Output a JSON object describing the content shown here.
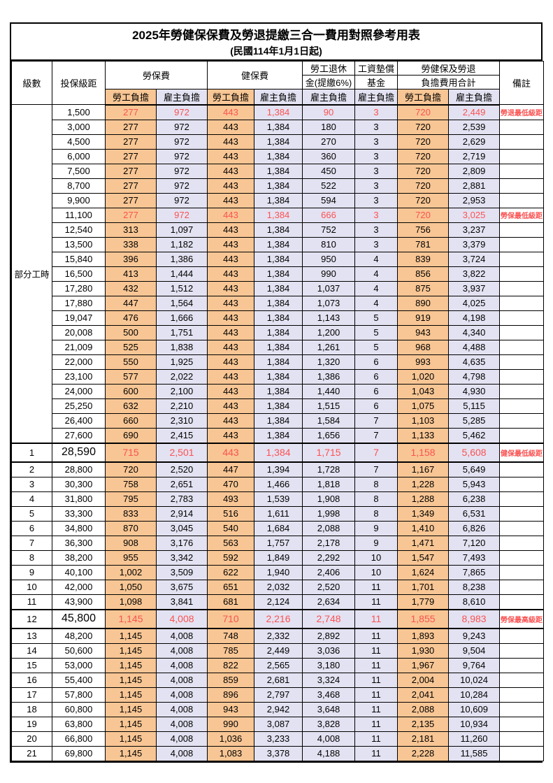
{
  "title": "2025年勞健保保費及勞退提繳三合一費用對照參考用表",
  "subtitle": "(民國114年1月1日起)",
  "columns": {
    "level": "級數",
    "bracket": "投保級距",
    "labor": "勞保費",
    "health": "健保費",
    "pension_line1": "勞工退休",
    "pension_line2": "金(提繳6%)",
    "wage_fund_line1": "工資墊償",
    "wage_fund_line2": "基金",
    "total_line1": "勞健保及勞退",
    "total_line2": "負擔費用合計",
    "remark": "備註",
    "employee": "勞工負擔",
    "employer": "雇主負擔"
  },
  "group_label": "部分工時",
  "part_time_row_count": 23,
  "colors": {
    "employee_fill": "#F8C694",
    "employer_fill": "#E3E2F2",
    "highlight_text": "#FB5252",
    "border": "#000000"
  },
  "row_fields": [
    "level",
    "salary",
    "labor_emp",
    "labor_er",
    "health_emp",
    "health_er",
    "pension_er",
    "wage_fund_er",
    "total_emp",
    "total_er",
    "note",
    "style"
  ],
  "rows": [
    [
      "",
      "1,500",
      "277",
      "972",
      "443",
      "1,384",
      "90",
      "3",
      "720",
      "2,449",
      "勞退最低級距",
      "red"
    ],
    [
      "",
      "3,000",
      "277",
      "972",
      "443",
      "1,384",
      "180",
      "3",
      "720",
      "2,539",
      "",
      ""
    ],
    [
      "",
      "4,500",
      "277",
      "972",
      "443",
      "1,384",
      "270",
      "3",
      "720",
      "2,629",
      "",
      ""
    ],
    [
      "",
      "6,000",
      "277",
      "972",
      "443",
      "1,384",
      "360",
      "3",
      "720",
      "2,719",
      "",
      ""
    ],
    [
      "",
      "7,500",
      "277",
      "972",
      "443",
      "1,384",
      "450",
      "3",
      "720",
      "2,809",
      "",
      ""
    ],
    [
      "",
      "8,700",
      "277",
      "972",
      "443",
      "1,384",
      "522",
      "3",
      "720",
      "2,881",
      "",
      ""
    ],
    [
      "",
      "9,900",
      "277",
      "972",
      "443",
      "1,384",
      "594",
      "3",
      "720",
      "2,953",
      "",
      ""
    ],
    [
      "",
      "11,100",
      "277",
      "972",
      "443",
      "1,384",
      "666",
      "3",
      "720",
      "3,025",
      "勞保最低級距",
      "red"
    ],
    [
      "",
      "12,540",
      "313",
      "1,097",
      "443",
      "1,384",
      "752",
      "3",
      "756",
      "3,237",
      "",
      ""
    ],
    [
      "",
      "13,500",
      "338",
      "1,182",
      "443",
      "1,384",
      "810",
      "3",
      "781",
      "3,379",
      "",
      ""
    ],
    [
      "",
      "15,840",
      "396",
      "1,386",
      "443",
      "1,384",
      "950",
      "4",
      "839",
      "3,724",
      "",
      ""
    ],
    [
      "",
      "16,500",
      "413",
      "1,444",
      "443",
      "1,384",
      "990",
      "4",
      "856",
      "3,822",
      "",
      ""
    ],
    [
      "",
      "17,280",
      "432",
      "1,512",
      "443",
      "1,384",
      "1,037",
      "4",
      "875",
      "3,937",
      "",
      ""
    ],
    [
      "",
      "17,880",
      "447",
      "1,564",
      "443",
      "1,384",
      "1,073",
      "4",
      "890",
      "4,025",
      "",
      ""
    ],
    [
      "",
      "19,047",
      "476",
      "1,666",
      "443",
      "1,384",
      "1,143",
      "5",
      "919",
      "4,198",
      "",
      ""
    ],
    [
      "",
      "20,008",
      "500",
      "1,751",
      "443",
      "1,384",
      "1,200",
      "5",
      "943",
      "4,340",
      "",
      ""
    ],
    [
      "",
      "21,009",
      "525",
      "1,838",
      "443",
      "1,384",
      "1,261",
      "5",
      "968",
      "4,488",
      "",
      ""
    ],
    [
      "",
      "22,000",
      "550",
      "1,925",
      "443",
      "1,384",
      "1,320",
      "6",
      "993",
      "4,635",
      "",
      ""
    ],
    [
      "",
      "23,100",
      "577",
      "2,022",
      "443",
      "1,384",
      "1,386",
      "6",
      "1,020",
      "4,798",
      "",
      ""
    ],
    [
      "",
      "24,000",
      "600",
      "2,100",
      "443",
      "1,384",
      "1,440",
      "6",
      "1,043",
      "4,930",
      "",
      ""
    ],
    [
      "",
      "25,250",
      "632",
      "2,210",
      "443",
      "1,384",
      "1,515",
      "6",
      "1,075",
      "5,115",
      "",
      ""
    ],
    [
      "",
      "26,400",
      "660",
      "2,310",
      "443",
      "1,384",
      "1,584",
      "7",
      "1,103",
      "5,285",
      "",
      ""
    ],
    [
      "",
      "27,600",
      "690",
      "2,415",
      "443",
      "1,384",
      "1,656",
      "7",
      "1,133",
      "5,462",
      "",
      ""
    ],
    [
      "1",
      "28,590",
      "715",
      "2,501",
      "443",
      "1,384",
      "1,715",
      "7",
      "1,158",
      "5,608",
      "健保最低級距",
      "red-big"
    ],
    [
      "2",
      "28,800",
      "720",
      "2,520",
      "447",
      "1,394",
      "1,728",
      "7",
      "1,167",
      "5,649",
      "",
      ""
    ],
    [
      "3",
      "30,300",
      "758",
      "2,651",
      "470",
      "1,466",
      "1,818",
      "8",
      "1,228",
      "5,943",
      "",
      ""
    ],
    [
      "4",
      "31,800",
      "795",
      "2,783",
      "493",
      "1,539",
      "1,908",
      "8",
      "1,288",
      "6,238",
      "",
      ""
    ],
    [
      "5",
      "33,300",
      "833",
      "2,914",
      "516",
      "1,611",
      "1,998",
      "8",
      "1,349",
      "6,531",
      "",
      ""
    ],
    [
      "6",
      "34,800",
      "870",
      "3,045",
      "540",
      "1,684",
      "2,088",
      "9",
      "1,410",
      "6,826",
      "",
      ""
    ],
    [
      "7",
      "36,300",
      "908",
      "3,176",
      "563",
      "1,757",
      "2,178",
      "9",
      "1,471",
      "7,120",
      "",
      ""
    ],
    [
      "8",
      "38,200",
      "955",
      "3,342",
      "592",
      "1,849",
      "2,292",
      "10",
      "1,547",
      "7,493",
      "",
      ""
    ],
    [
      "9",
      "40,100",
      "1,002",
      "3,509",
      "622",
      "1,940",
      "2,406",
      "10",
      "1,624",
      "7,865",
      "",
      ""
    ],
    [
      "10",
      "42,000",
      "1,050",
      "3,675",
      "651",
      "2,032",
      "2,520",
      "11",
      "1,701",
      "8,238",
      "",
      ""
    ],
    [
      "11",
      "43,900",
      "1,098",
      "3,841",
      "681",
      "2,124",
      "2,634",
      "11",
      "1,779",
      "8,610",
      "",
      ""
    ],
    [
      "12",
      "45,800",
      "1,145",
      "4,008",
      "710",
      "2,216",
      "2,748",
      "11",
      "1,855",
      "8,983",
      "勞保最高級距",
      "red-big"
    ],
    [
      "13",
      "48,200",
      "1,145",
      "4,008",
      "748",
      "2,332",
      "2,892",
      "11",
      "1,893",
      "9,243",
      "",
      ""
    ],
    [
      "14",
      "50,600",
      "1,145",
      "4,008",
      "785",
      "2,449",
      "3,036",
      "11",
      "1,930",
      "9,504",
      "",
      ""
    ],
    [
      "15",
      "53,000",
      "1,145",
      "4,008",
      "822",
      "2,565",
      "3,180",
      "11",
      "1,967",
      "9,764",
      "",
      ""
    ],
    [
      "16",
      "55,400",
      "1,145",
      "4,008",
      "859",
      "2,681",
      "3,324",
      "11",
      "2,004",
      "10,024",
      "",
      ""
    ],
    [
      "17",
      "57,800",
      "1,145",
      "4,008",
      "896",
      "2,797",
      "3,468",
      "11",
      "2,041",
      "10,284",
      "",
      ""
    ],
    [
      "18",
      "60,800",
      "1,145",
      "4,008",
      "943",
      "2,942",
      "3,648",
      "11",
      "2,088",
      "10,609",
      "",
      ""
    ],
    [
      "19",
      "63,800",
      "1,145",
      "4,008",
      "990",
      "3,087",
      "3,828",
      "11",
      "2,135",
      "10,934",
      "",
      ""
    ],
    [
      "20",
      "66,800",
      "1,145",
      "4,008",
      "1,036",
      "3,233",
      "4,008",
      "11",
      "2,181",
      "11,260",
      "",
      ""
    ],
    [
      "21",
      "69,800",
      "1,145",
      "4,008",
      "1,083",
      "3,378",
      "4,188",
      "11",
      "2,228",
      "11,585",
      "",
      ""
    ]
  ]
}
